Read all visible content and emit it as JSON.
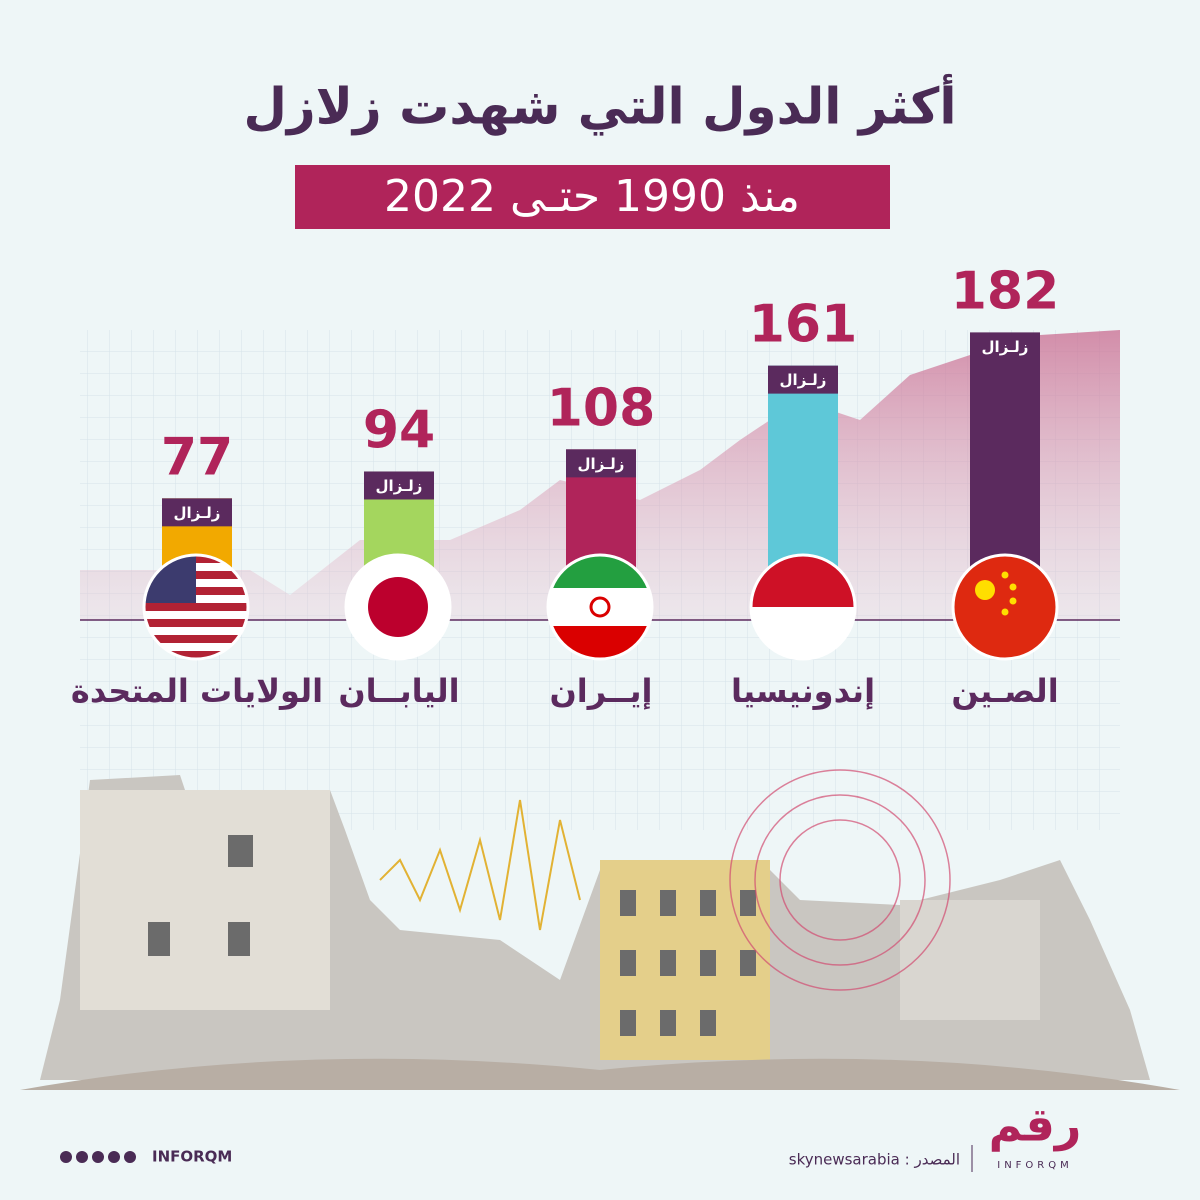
{
  "chart_data": {
    "type": "bar",
    "title": "أكثر الدول التي شهدت زلازل",
    "subtitle": "منذ 1990 حتـى 2022",
    "categories": [
      "الصـين",
      "إندونيسيا",
      "إيــران",
      "اليابــان",
      "الولايات المتحدة"
    ],
    "values": [
      182,
      161,
      108,
      94,
      77
    ],
    "colors": [
      "#5b2a5e",
      "#5ec8d8",
      "#b0245a",
      "#a4d65e",
      "#f2a900"
    ],
    "unit_label": "زلـزال"
  },
  "footer": {
    "social": "INFORQM",
    "source": "skynewsarabia : المصدر",
    "logo": "رقم",
    "logo_sub": "INFORQM"
  }
}
